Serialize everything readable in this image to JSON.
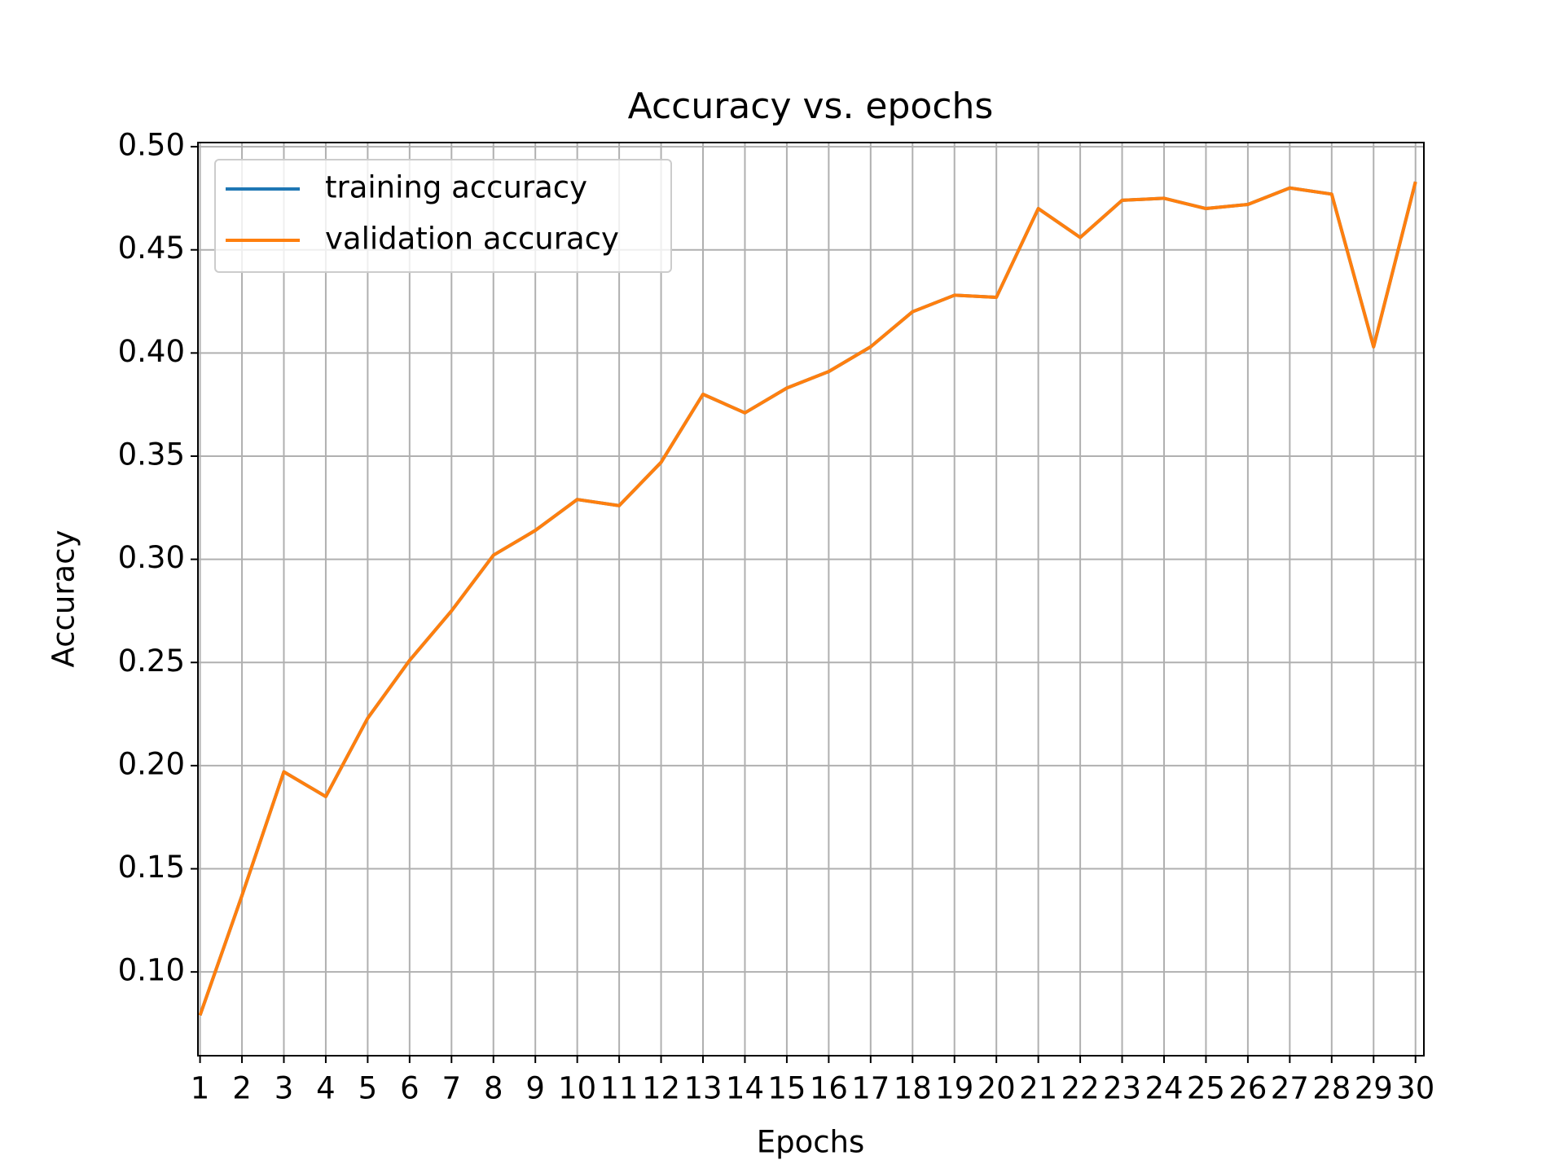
{
  "chart_data": {
    "type": "line",
    "title": "Accuracy vs. epochs",
    "x_label": "Epochs",
    "y_label": "Accuracy",
    "x": [
      1,
      2,
      3,
      4,
      5,
      6,
      7,
      8,
      9,
      10,
      11,
      12,
      13,
      14,
      15,
      16,
      17,
      18,
      19,
      20,
      21,
      22,
      23,
      24,
      25,
      26,
      27,
      28,
      29,
      30
    ],
    "series": [
      {
        "name": "training accuracy",
        "color": "#1f77b4",
        "values": [
          0.079,
          0.137,
          0.197,
          0.185,
          0.223,
          0.251,
          0.275,
          0.302,
          0.314,
          0.329,
          0.326,
          0.347,
          0.38,
          0.371,
          0.383,
          0.391,
          0.403,
          0.42,
          0.428,
          0.427,
          0.47,
          0.456,
          0.474,
          0.475,
          0.47,
          0.472,
          0.48,
          0.477,
          0.403,
          0.483
        ]
      },
      {
        "name": "validation accuracy",
        "color": "#ff7f0e",
        "values": [
          0.079,
          0.137,
          0.197,
          0.185,
          0.223,
          0.251,
          0.275,
          0.302,
          0.314,
          0.329,
          0.326,
          0.347,
          0.38,
          0.371,
          0.383,
          0.391,
          0.403,
          0.42,
          0.428,
          0.427,
          0.47,
          0.456,
          0.474,
          0.475,
          0.47,
          0.472,
          0.48,
          0.477,
          0.403,
          0.483
        ]
      }
    ],
    "xlim": [
      0.95,
      30.2
    ],
    "xticks": [
      1,
      2,
      3,
      4,
      5,
      6,
      7,
      8,
      9,
      10,
      11,
      12,
      13,
      14,
      15,
      16,
      17,
      18,
      19,
      20,
      21,
      22,
      23,
      24,
      25,
      26,
      27,
      28,
      29,
      30
    ],
    "ylim": [
      0.0594,
      0.502
    ],
    "yticks": [
      {
        "value": 0.1,
        "label": "0.10"
      },
      {
        "value": 0.15,
        "label": "0.15"
      },
      {
        "value": 0.2,
        "label": "0.20"
      },
      {
        "value": 0.25,
        "label": "0.25"
      },
      {
        "value": 0.3,
        "label": "0.30"
      },
      {
        "value": 0.35,
        "label": "0.35"
      },
      {
        "value": 0.4,
        "label": "0.40"
      },
      {
        "value": 0.45,
        "label": "0.45"
      },
      {
        "value": 0.5,
        "label": "0.50"
      }
    ],
    "grid": true,
    "legend": "upper left"
  }
}
